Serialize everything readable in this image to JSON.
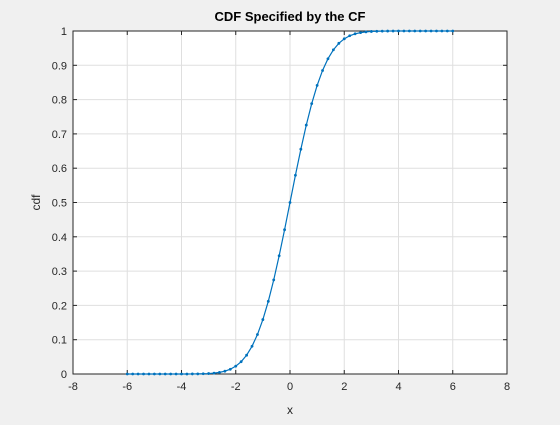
{
  "chart_data": {
    "type": "line",
    "title": "CDF Specified by the CF",
    "xlabel": "x",
    "ylabel": "cdf",
    "xlim": [
      -8,
      8
    ],
    "ylim": [
      0,
      1
    ],
    "xticks": [
      -8,
      -6,
      -4,
      -2,
      0,
      2,
      4,
      6,
      8
    ],
    "yticks": [
      0,
      0.1,
      0.2,
      0.3,
      0.4,
      0.5,
      0.6,
      0.7,
      0.8,
      0.9,
      1
    ],
    "grid": true,
    "series": [
      {
        "color": "#0072bd",
        "marker": "dot",
        "x": [
          -6,
          -5.8,
          -5.6,
          -5.4,
          -5.2,
          -5,
          -4.8,
          -4.6,
          -4.4,
          -4.2,
          -4,
          -3.8,
          -3.6,
          -3.4,
          -3.2,
          -3,
          -2.8,
          -2.6,
          -2.4,
          -2.2,
          -2,
          -1.8,
          -1.6,
          -1.4,
          -1.2,
          -1,
          -0.8,
          -0.6,
          -0.4,
          -0.2,
          0,
          0.2,
          0.4,
          0.6,
          0.8,
          1,
          1.2,
          1.4,
          1.6,
          1.8,
          2,
          2.2,
          2.4,
          2.6,
          2.8,
          3,
          3.2,
          3.4,
          3.6,
          3.8,
          4,
          4.2,
          4.4,
          4.6,
          4.8,
          5,
          5.2,
          5.4,
          5.6,
          5.8,
          6
        ],
        "y": [
          0,
          0,
          0,
          0,
          0,
          0,
          0,
          0,
          0,
          0,
          0,
          0.0001,
          0.0002,
          0.0003,
          0.0007,
          0.0013,
          0.0026,
          0.0047,
          0.0082,
          0.0139,
          0.0228,
          0.0359,
          0.0548,
          0.0808,
          0.1151,
          0.1587,
          0.2119,
          0.2743,
          0.3446,
          0.4207,
          0.5,
          0.5793,
          0.6554,
          0.7257,
          0.7881,
          0.8413,
          0.8849,
          0.9192,
          0.9452,
          0.9641,
          0.9772,
          0.9861,
          0.9918,
          0.9953,
          0.9974,
          0.9987,
          0.9993,
          0.9997,
          0.9998,
          0.9999,
          1,
          1,
          1,
          1,
          1,
          1,
          1,
          1,
          1,
          1,
          1
        ]
      }
    ]
  }
}
